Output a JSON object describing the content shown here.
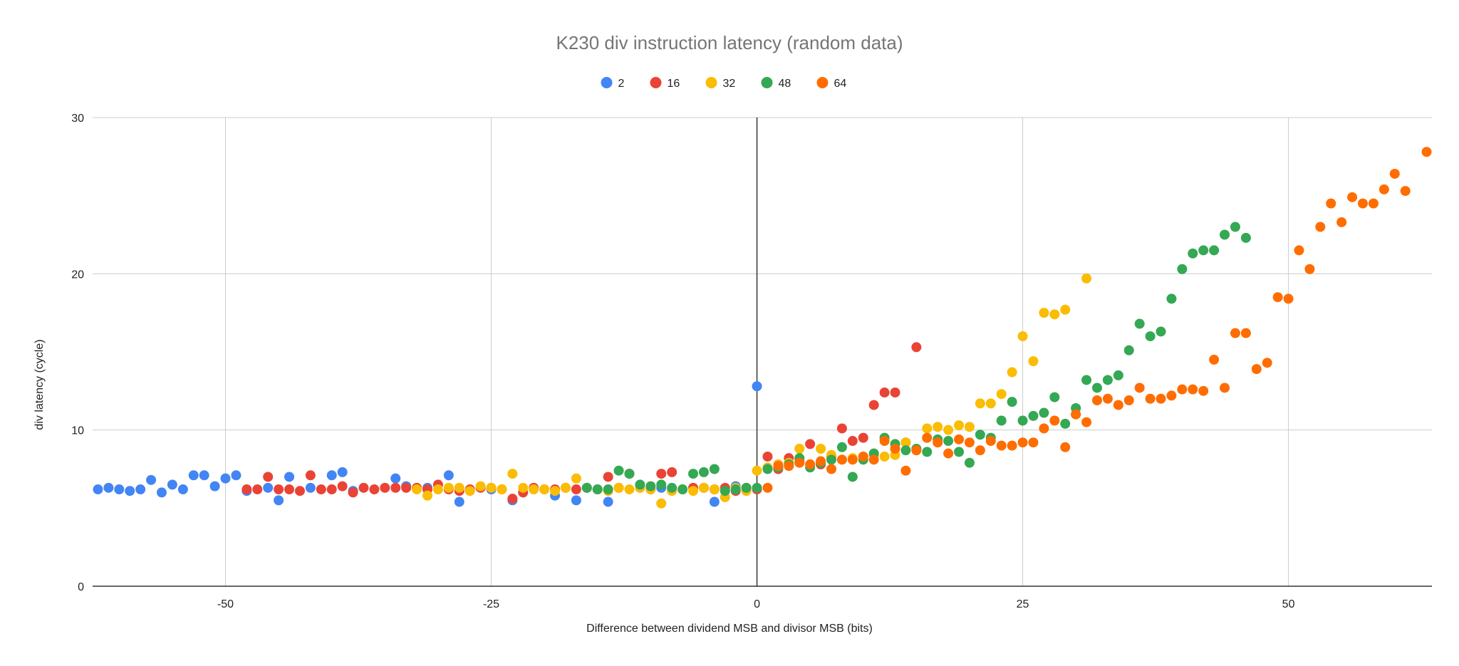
{
  "chart_data": {
    "type": "scatter",
    "title": "K230 div instruction latency (random data)",
    "xlabel": "Difference between dividend MSB and divisor MSB (bits)",
    "ylabel": "div latency (cycle)",
    "xlim": [
      -62.5,
      63.5
    ],
    "ylim": [
      0,
      30
    ],
    "xticks": [
      -50,
      -25,
      0,
      25,
      50
    ],
    "yticks": [
      0,
      10,
      20,
      30
    ],
    "legend_position": "top",
    "grid": true,
    "series": [
      {
        "name": "2",
        "color": "#4285F4",
        "points": [
          [
            -62,
            6.2
          ],
          [
            -61,
            6.3
          ],
          [
            -60,
            6.2
          ],
          [
            -59,
            6.1
          ],
          [
            -58,
            6.2
          ],
          [
            -57,
            6.8
          ],
          [
            -56,
            6.0
          ],
          [
            -55,
            6.5
          ],
          [
            -54,
            6.2
          ],
          [
            -53,
            7.1
          ],
          [
            -52,
            7.1
          ],
          [
            -51,
            6.4
          ],
          [
            -50,
            6.9
          ],
          [
            -49,
            7.1
          ],
          [
            -48,
            6.1
          ],
          [
            -46,
            6.3
          ],
          [
            -45,
            5.5
          ],
          [
            -44,
            7.0
          ],
          [
            -42,
            6.3
          ],
          [
            -40,
            7.1
          ],
          [
            -39,
            7.3
          ],
          [
            -38,
            6.1
          ],
          [
            -34,
            6.9
          ],
          [
            -33,
            6.4
          ],
          [
            -31,
            6.3
          ],
          [
            -29,
            7.1
          ],
          [
            -28,
            5.4
          ],
          [
            -25,
            6.2
          ],
          [
            -23,
            5.5
          ],
          [
            -19,
            5.8
          ],
          [
            -17,
            5.5
          ],
          [
            -14,
            5.4
          ],
          [
            -9,
            6.3
          ],
          [
            -4,
            5.4
          ],
          [
            -2,
            6.4
          ],
          [
            0,
            12.8
          ]
        ]
      },
      {
        "name": "16",
        "color": "#EA4335",
        "points": [
          [
            -48,
            6.2
          ],
          [
            -47,
            6.2
          ],
          [
            -46,
            7.0
          ],
          [
            -45,
            6.2
          ],
          [
            -44,
            6.2
          ],
          [
            -43,
            6.1
          ],
          [
            -42,
            7.1
          ],
          [
            -41,
            6.2
          ],
          [
            -40,
            6.2
          ],
          [
            -39,
            6.4
          ],
          [
            -38,
            6.0
          ],
          [
            -37,
            6.3
          ],
          [
            -36,
            6.2
          ],
          [
            -35,
            6.3
          ],
          [
            -34,
            6.3
          ],
          [
            -33,
            6.3
          ],
          [
            -32,
            6.3
          ],
          [
            -31,
            6.2
          ],
          [
            -30,
            6.5
          ],
          [
            -29,
            6.2
          ],
          [
            -28,
            6.1
          ],
          [
            -27,
            6.2
          ],
          [
            -26,
            6.3
          ],
          [
            -25,
            6.3
          ],
          [
            -24,
            6.2
          ],
          [
            -23,
            5.6
          ],
          [
            -22,
            6.0
          ],
          [
            -21,
            6.3
          ],
          [
            -20,
            6.2
          ],
          [
            -19,
            6.2
          ],
          [
            -18,
            6.3
          ],
          [
            -17,
            6.2
          ],
          [
            -16,
            6.3
          ],
          [
            -15,
            6.2
          ],
          [
            -14,
            7.0
          ],
          [
            -13,
            6.3
          ],
          [
            -12,
            7.2
          ],
          [
            -11,
            6.3
          ],
          [
            -10,
            6.2
          ],
          [
            -9,
            7.2
          ],
          [
            -8,
            7.3
          ],
          [
            -7,
            6.2
          ],
          [
            -6,
            6.3
          ],
          [
            -5,
            6.3
          ],
          [
            -4,
            6.2
          ],
          [
            -3,
            6.3
          ],
          [
            -2,
            6.1
          ],
          [
            -1,
            6.3
          ],
          [
            0,
            6.2
          ],
          [
            1,
            8.3
          ],
          [
            2,
            7.5
          ],
          [
            3,
            8.2
          ],
          [
            4,
            8.0
          ],
          [
            5,
            9.1
          ],
          [
            6,
            7.8
          ],
          [
            7,
            8.3
          ],
          [
            8,
            10.1
          ],
          [
            9,
            9.3
          ],
          [
            10,
            9.5
          ],
          [
            11,
            11.6
          ],
          [
            12,
            12.4
          ],
          [
            13,
            12.4
          ],
          [
            14,
            9.2
          ],
          [
            15,
            15.3
          ]
        ]
      },
      {
        "name": "32",
        "color": "#FBBC04",
        "points": [
          [
            -32,
            6.2
          ],
          [
            -31,
            5.8
          ],
          [
            -30,
            6.2
          ],
          [
            -29,
            6.3
          ],
          [
            -28,
            6.3
          ],
          [
            -27,
            6.1
          ],
          [
            -26,
            6.4
          ],
          [
            -25,
            6.3
          ],
          [
            -24,
            6.2
          ],
          [
            -23,
            7.2
          ],
          [
            -22,
            6.3
          ],
          [
            -21,
            6.2
          ],
          [
            -20,
            6.2
          ],
          [
            -19,
            6.1
          ],
          [
            -18,
            6.3
          ],
          [
            -17,
            6.9
          ],
          [
            -16,
            6.3
          ],
          [
            -15,
            6.2
          ],
          [
            -14,
            6.1
          ],
          [
            -13,
            6.3
          ],
          [
            -12,
            6.2
          ],
          [
            -11,
            6.3
          ],
          [
            -10,
            6.2
          ],
          [
            -9,
            5.3
          ],
          [
            -8,
            6.1
          ],
          [
            -7,
            6.2
          ],
          [
            -6,
            6.1
          ],
          [
            -5,
            6.3
          ],
          [
            -4,
            6.2
          ],
          [
            -3,
            5.7
          ],
          [
            -2,
            6.3
          ],
          [
            -1,
            6.1
          ],
          [
            0,
            7.4
          ],
          [
            1,
            7.6
          ],
          [
            2,
            7.8
          ],
          [
            3,
            7.9
          ],
          [
            4,
            8.8
          ],
          [
            5,
            7.8
          ],
          [
            6,
            8.8
          ],
          [
            7,
            8.4
          ],
          [
            8,
            8.1
          ],
          [
            9,
            8.2
          ],
          [
            10,
            8.3
          ],
          [
            11,
            8.4
          ],
          [
            12,
            8.3
          ],
          [
            13,
            8.4
          ],
          [
            14,
            9.2
          ],
          [
            15,
            8.7
          ],
          [
            16,
            10.1
          ],
          [
            17,
            10.2
          ],
          [
            18,
            10.0
          ],
          [
            19,
            10.3
          ],
          [
            20,
            10.2
          ],
          [
            21,
            11.7
          ],
          [
            22,
            11.7
          ],
          [
            23,
            12.3
          ],
          [
            24,
            13.7
          ],
          [
            25,
            16.0
          ],
          [
            26,
            14.4
          ],
          [
            27,
            17.5
          ],
          [
            28,
            17.4
          ],
          [
            29,
            17.7
          ],
          [
            30,
            11.0
          ],
          [
            31,
            19.7
          ]
        ]
      },
      {
        "name": "48",
        "color": "#34A853",
        "points": [
          [
            -16,
            6.3
          ],
          [
            -15,
            6.2
          ],
          [
            -14,
            6.2
          ],
          [
            -13,
            7.4
          ],
          [
            -12,
            7.2
          ],
          [
            -11,
            6.5
          ],
          [
            -10,
            6.4
          ],
          [
            -9,
            6.5
          ],
          [
            -8,
            6.3
          ],
          [
            -7,
            6.2
          ],
          [
            -6,
            7.2
          ],
          [
            -5,
            7.3
          ],
          [
            -4,
            7.5
          ],
          [
            -3,
            6.1
          ],
          [
            -2,
            6.2
          ],
          [
            -1,
            6.3
          ],
          [
            0,
            6.3
          ],
          [
            1,
            7.5
          ],
          [
            2,
            7.6
          ],
          [
            3,
            7.8
          ],
          [
            4,
            8.2
          ],
          [
            5,
            7.6
          ],
          [
            6,
            7.9
          ],
          [
            7,
            8.1
          ],
          [
            8,
            8.9
          ],
          [
            9,
            7.0
          ],
          [
            10,
            8.1
          ],
          [
            11,
            8.5
          ],
          [
            12,
            9.5
          ],
          [
            13,
            9.1
          ],
          [
            14,
            8.7
          ],
          [
            15,
            8.8
          ],
          [
            16,
            8.6
          ],
          [
            17,
            9.4
          ],
          [
            18,
            9.3
          ],
          [
            19,
            8.6
          ],
          [
            20,
            7.9
          ],
          [
            21,
            9.7
          ],
          [
            22,
            9.5
          ],
          [
            23,
            10.6
          ],
          [
            24,
            11.8
          ],
          [
            25,
            10.6
          ],
          [
            26,
            10.9
          ],
          [
            27,
            11.1
          ],
          [
            28,
            12.1
          ],
          [
            29,
            10.4
          ],
          [
            30,
            11.4
          ],
          [
            31,
            13.2
          ],
          [
            32,
            12.7
          ],
          [
            33,
            13.2
          ],
          [
            34,
            13.5
          ],
          [
            35,
            15.1
          ],
          [
            36,
            16.8
          ],
          [
            37,
            16.0
          ],
          [
            38,
            16.3
          ],
          [
            39,
            18.4
          ],
          [
            40,
            20.3
          ],
          [
            41,
            21.3
          ],
          [
            42,
            21.5
          ],
          [
            43,
            21.5
          ],
          [
            44,
            22.5
          ],
          [
            45,
            23.0
          ],
          [
            46,
            22.3
          ]
        ]
      },
      {
        "name": "64",
        "color": "#FF6D01",
        "points": [
          [
            1,
            6.3
          ],
          [
            2,
            7.7
          ],
          [
            3,
            7.7
          ],
          [
            4,
            7.9
          ],
          [
            5,
            7.8
          ],
          [
            6,
            8.0
          ],
          [
            7,
            7.5
          ],
          [
            8,
            8.1
          ],
          [
            9,
            8.1
          ],
          [
            10,
            8.3
          ],
          [
            11,
            8.1
          ],
          [
            12,
            9.3
          ],
          [
            13,
            8.8
          ],
          [
            14,
            7.4
          ],
          [
            15,
            8.7
          ],
          [
            16,
            9.5
          ],
          [
            17,
            9.2
          ],
          [
            18,
            8.5
          ],
          [
            19,
            9.4
          ],
          [
            20,
            9.2
          ],
          [
            21,
            8.7
          ],
          [
            22,
            9.3
          ],
          [
            23,
            9.0
          ],
          [
            24,
            9.0
          ],
          [
            25,
            9.2
          ],
          [
            26,
            9.2
          ],
          [
            27,
            10.1
          ],
          [
            28,
            10.6
          ],
          [
            29,
            8.9
          ],
          [
            30,
            11.0
          ],
          [
            31,
            10.5
          ],
          [
            32,
            11.9
          ],
          [
            33,
            12.0
          ],
          [
            34,
            11.6
          ],
          [
            35,
            11.9
          ],
          [
            36,
            12.7
          ],
          [
            37,
            12.0
          ],
          [
            38,
            12.0
          ],
          [
            39,
            12.2
          ],
          [
            40,
            12.6
          ],
          [
            41,
            12.6
          ],
          [
            42,
            12.5
          ],
          [
            43,
            14.5
          ],
          [
            44,
            12.7
          ],
          [
            45,
            16.2
          ],
          [
            46,
            16.2
          ],
          [
            47,
            13.9
          ],
          [
            48,
            14.3
          ],
          [
            49,
            18.5
          ],
          [
            50,
            18.4
          ],
          [
            51,
            21.5
          ],
          [
            52,
            20.3
          ],
          [
            53,
            23.0
          ],
          [
            54,
            24.5
          ],
          [
            55,
            23.3
          ],
          [
            56,
            24.9
          ],
          [
            57,
            24.5
          ],
          [
            58,
            24.5
          ],
          [
            59,
            25.4
          ],
          [
            60,
            26.4
          ],
          [
            61,
            25.3
          ],
          [
            63,
            27.8
          ]
        ]
      }
    ]
  }
}
